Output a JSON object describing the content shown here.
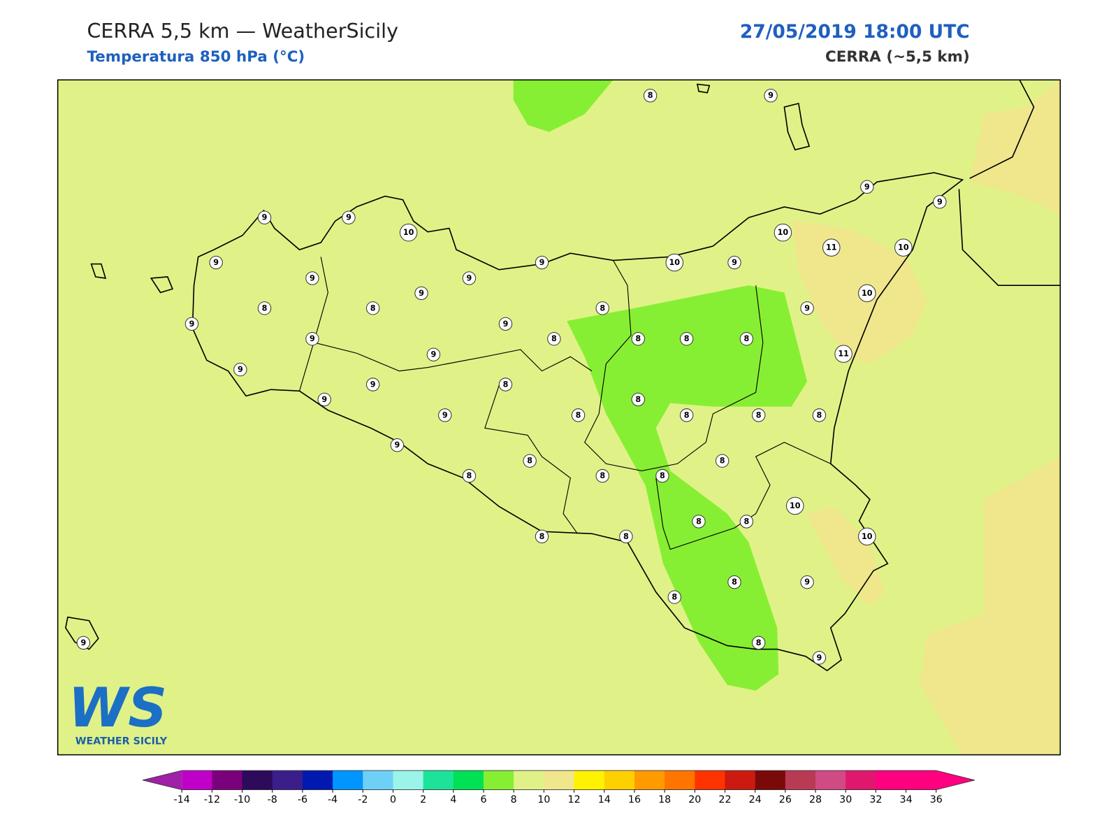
{
  "header": {
    "title": "CERRA 5,5 km — WeatherSicily",
    "subtitle": "Temperatura 850 hPa (°C)",
    "datetime": "27/05/2019 18:00 UTC",
    "model": "CERRA (~5,5 km)"
  },
  "map": {
    "background_color": "#e0f287",
    "band_8_color": "#87ef33",
    "band_10_color": "#f0e68c",
    "stations": [
      8,
      9,
      9,
      9,
      10,
      9,
      9,
      9,
      9,
      10,
      9,
      10,
      11,
      10,
      9,
      9,
      10,
      9,
      8,
      8,
      8,
      9,
      9,
      9,
      9,
      8,
      8,
      8,
      8,
      11,
      9,
      9,
      9,
      8,
      9,
      8,
      9,
      8,
      8,
      8,
      8,
      9,
      8,
      8,
      8,
      8,
      8,
      10,
      8,
      8,
      10,
      8,
      8,
      8,
      9,
      8,
      8,
      9,
      9
    ]
  },
  "logo": {
    "letters": "WS",
    "name": "WEATHER SICILY"
  },
  "colorbar": {
    "ticks": [
      -14,
      -12,
      -10,
      -8,
      -6,
      -4,
      -2,
      0,
      2,
      4,
      6,
      8,
      10,
      12,
      14,
      16,
      18,
      20,
      22,
      24,
      26,
      28,
      30,
      32,
      34,
      36
    ],
    "under_color": "#a020a8",
    "over_color": "#ff0080",
    "colors": [
      "#c000c8",
      "#7b007b",
      "#2d0a5a",
      "#3a1f8a",
      "#0019b0",
      "#0095ff",
      "#6ed0f7",
      "#9af5e8",
      "#1de39a",
      "#00e155",
      "#87ef33",
      "#e0f287",
      "#f0e68c",
      "#fff200",
      "#ffd000",
      "#ff9a00",
      "#ff7500",
      "#ff3300",
      "#cc1a10",
      "#7a0a0a",
      "#b93a55",
      "#d04a84",
      "#e0176e",
      "#ff0080",
      "#ff007f"
    ]
  }
}
